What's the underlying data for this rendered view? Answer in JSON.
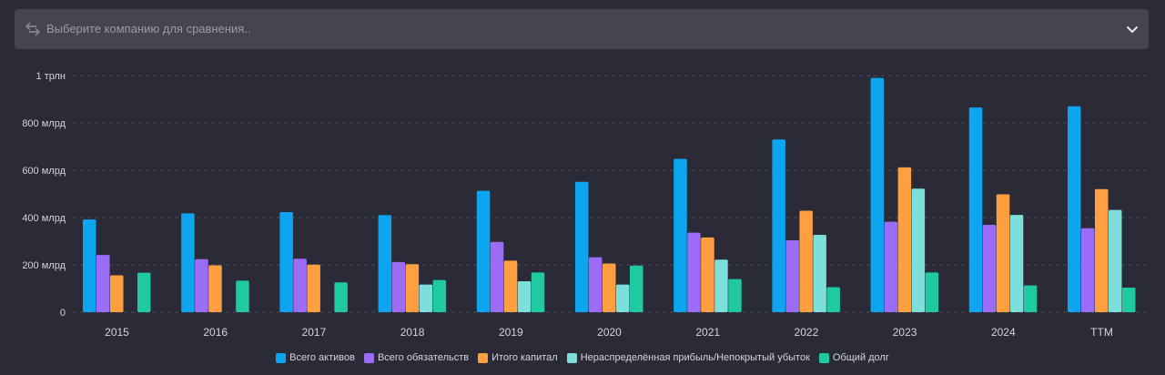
{
  "selector": {
    "placeholder": "Выберите компанию для сравнения..",
    "swap_icon": "swap-arrows-icon",
    "dropdown_icon": "chevron-down-icon"
  },
  "chart_data": {
    "type": "bar",
    "categories": [
      "2015",
      "2016",
      "2017",
      "2018",
      "2019",
      "2020",
      "2021",
      "2022",
      "2023",
      "2024",
      "TTM"
    ],
    "ylim": [
      0,
      1000
    ],
    "y_ticks": [
      {
        "value": 0,
        "label": "0"
      },
      {
        "value": 200,
        "label": "200 млрд"
      },
      {
        "value": 400,
        "label": "400 млрд"
      },
      {
        "value": 600,
        "label": "600 млрд"
      },
      {
        "value": 800,
        "label": "800 млрд"
      },
      {
        "value": 1000,
        "label": "1 трлн"
      }
    ],
    "grid": true,
    "legend_position": "bottom",
    "series": [
      {
        "name": "Всего активов",
        "color": "#0ea5f0",
        "values": [
          392,
          418,
          423,
          410,
          513,
          551,
          648,
          730,
          990,
          865,
          870
        ]
      },
      {
        "name": "Всего обязательств",
        "color": "#9b6cf5",
        "values": [
          242,
          224,
          226,
          212,
          297,
          232,
          336,
          304,
          382,
          369,
          355
        ]
      },
      {
        "name": "Итого капитал",
        "color": "#ff9f40",
        "values": [
          156,
          198,
          201,
          203,
          218,
          206,
          316,
          429,
          612,
          498,
          520
        ]
      },
      {
        "name": "Нераспределённая прибыль/Непокрытый убыток",
        "color": "#7ddfdb",
        "values": [
          null,
          null,
          null,
          117,
          131,
          117,
          222,
          327,
          522,
          411,
          432
        ]
      },
      {
        "name": "Общий долг",
        "color": "#1fc9a2",
        "values": [
          167,
          133,
          126,
          136,
          168,
          197,
          140,
          106,
          168,
          113,
          104
        ]
      }
    ]
  }
}
